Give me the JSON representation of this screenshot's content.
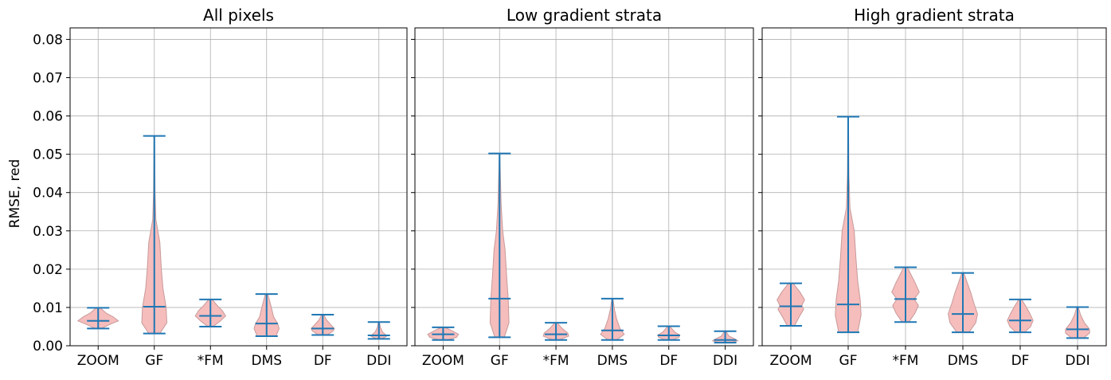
{
  "chart_data": {
    "type": "violin",
    "ylabel": "RMSE, red",
    "ylim": [
      0,
      0.083
    ],
    "yticks": [
      0.0,
      0.01,
      0.02,
      0.03,
      0.04,
      0.05,
      0.06,
      0.07,
      0.08
    ],
    "ytick_labels": [
      "0.00",
      "0.01",
      "0.02",
      "0.03",
      "0.04",
      "0.05",
      "0.06",
      "0.07",
      "0.08"
    ],
    "categories": [
      "ZOOM",
      "GF",
      "*FM",
      "DMS",
      "DF",
      "DDI"
    ],
    "grid": true,
    "violin_color": "#f4b9b8",
    "line_color": "#1f77b4",
    "panels": [
      {
        "title": "All pixels",
        "violins": [
          {
            "min": 0.0045,
            "median": 0.0065,
            "max": 0.0099,
            "profile": [
              [
                0.0045,
                0.15
              ],
              [
                0.0055,
                0.55
              ],
              [
                0.0065,
                1.0
              ],
              [
                0.0075,
                0.75
              ],
              [
                0.0085,
                0.4
              ],
              [
                0.0099,
                0.1
              ]
            ],
            "width": 0.9
          },
          {
            "min": 0.0032,
            "median": 0.0102,
            "max": 0.0548,
            "profile": [
              [
                0.0032,
                0.35
              ],
              [
                0.006,
                0.8
              ],
              [
                0.01,
                0.75
              ],
              [
                0.015,
                0.55
              ],
              [
                0.02,
                0.45
              ],
              [
                0.027,
                0.35
              ],
              [
                0.033,
                0.1
              ],
              [
                0.04,
                0.05
              ],
              [
                0.0548,
                0.02
              ]
            ],
            "width": 0.7
          },
          {
            "min": 0.005,
            "median": 0.0078,
            "max": 0.0121,
            "profile": [
              [
                0.005,
                0.15
              ],
              [
                0.0065,
                0.6
              ],
              [
                0.0078,
                0.9
              ],
              [
                0.0092,
                0.7
              ],
              [
                0.0105,
                0.4
              ],
              [
                0.0121,
                0.1
              ]
            ],
            "width": 0.75
          },
          {
            "min": 0.0025,
            "median": 0.0058,
            "max": 0.0135,
            "profile": [
              [
                0.0025,
                0.6
              ],
              [
                0.0045,
                0.8
              ],
              [
                0.0058,
                0.7
              ],
              [
                0.0075,
                0.45
              ],
              [
                0.01,
                0.3
              ],
              [
                0.0135,
                0.08
              ]
            ],
            "width": 0.7
          },
          {
            "min": 0.0028,
            "median": 0.0045,
            "max": 0.0081,
            "profile": [
              [
                0.0028,
                0.3
              ],
              [
                0.0038,
                0.7
              ],
              [
                0.0045,
                0.8
              ],
              [
                0.0055,
                0.55
              ],
              [
                0.0068,
                0.25
              ],
              [
                0.0081,
                0.08
              ]
            ],
            "width": 0.65
          },
          {
            "min": 0.0018,
            "median": 0.0027,
            "max": 0.0062,
            "profile": [
              [
                0.0018,
                0.2
              ],
              [
                0.0024,
                0.6
              ],
              [
                0.0029,
                0.55
              ],
              [
                0.0036,
                0.3
              ],
              [
                0.0048,
                0.12
              ],
              [
                0.0062,
                0.04
              ]
            ],
            "width": 0.55
          }
        ]
      },
      {
        "title": "Low gradient strata",
        "violins": [
          {
            "min": 0.0015,
            "median": 0.003,
            "max": 0.0048,
            "profile": [
              [
                0.0015,
                0.2
              ],
              [
                0.0022,
                0.7
              ],
              [
                0.003,
                0.8
              ],
              [
                0.0038,
                0.5
              ],
              [
                0.0048,
                0.1
              ]
            ],
            "width": 0.85
          },
          {
            "min": 0.0022,
            "median": 0.0123,
            "max": 0.0502,
            "profile": [
              [
                0.0022,
                0.3
              ],
              [
                0.006,
                0.6
              ],
              [
                0.012,
                0.55
              ],
              [
                0.018,
                0.45
              ],
              [
                0.025,
                0.35
              ],
              [
                0.03,
                0.2
              ],
              [
                0.037,
                0.1
              ],
              [
                0.0502,
                0.02
              ]
            ],
            "width": 0.7
          },
          {
            "min": 0.0015,
            "median": 0.003,
            "max": 0.006,
            "profile": [
              [
                0.0015,
                0.2
              ],
              [
                0.0025,
                0.8
              ],
              [
                0.0033,
                0.75
              ],
              [
                0.0045,
                0.4
              ],
              [
                0.006,
                0.08
              ]
            ],
            "width": 0.7
          },
          {
            "min": 0.0015,
            "median": 0.004,
            "max": 0.0123,
            "profile": [
              [
                0.0015,
                0.25
              ],
              [
                0.003,
                0.7
              ],
              [
                0.0045,
                0.45
              ],
              [
                0.007,
                0.25
              ],
              [
                0.0095,
                0.12
              ],
              [
                0.0123,
                0.03
              ]
            ],
            "width": 0.75
          },
          {
            "min": 0.0015,
            "median": 0.0027,
            "max": 0.0051,
            "profile": [
              [
                0.0015,
                0.2
              ],
              [
                0.0022,
                0.65
              ],
              [
                0.0028,
                0.7
              ],
              [
                0.0035,
                0.4
              ],
              [
                0.0051,
                0.06
              ]
            ],
            "width": 0.7
          },
          {
            "min": 0.0008,
            "median": 0.0015,
            "max": 0.0038,
            "profile": [
              [
                0.0008,
                0.3
              ],
              [
                0.0013,
                0.8
              ],
              [
                0.0018,
                0.6
              ],
              [
                0.0025,
                0.25
              ],
              [
                0.0038,
                0.04
              ]
            ],
            "width": 0.7
          }
        ]
      },
      {
        "title": "High gradient strata",
        "violins": [
          {
            "min": 0.0052,
            "median": 0.0103,
            "max": 0.0163,
            "profile": [
              [
                0.0052,
                0.2
              ],
              [
                0.0075,
                0.45
              ],
              [
                0.0095,
                0.7
              ],
              [
                0.0105,
                0.6
              ],
              [
                0.012,
                0.75
              ],
              [
                0.014,
                0.5
              ],
              [
                0.0163,
                0.12
              ]
            ],
            "width": 0.8
          },
          {
            "min": 0.0035,
            "median": 0.0108,
            "max": 0.0598,
            "profile": [
              [
                0.0035,
                0.55
              ],
              [
                0.008,
                0.75
              ],
              [
                0.012,
                0.7
              ],
              [
                0.017,
                0.55
              ],
              [
                0.023,
                0.45
              ],
              [
                0.03,
                0.35
              ],
              [
                0.036,
                0.1
              ],
              [
                0.045,
                0.04
              ],
              [
                0.0598,
                0.02
              ]
            ],
            "width": 0.75
          },
          {
            "min": 0.0062,
            "median": 0.0122,
            "max": 0.0205,
            "profile": [
              [
                0.0062,
                0.2
              ],
              [
                0.0085,
                0.55
              ],
              [
                0.0105,
                0.75
              ],
              [
                0.0122,
                0.5
              ],
              [
                0.014,
                0.8
              ],
              [
                0.0165,
                0.55
              ],
              [
                0.0205,
                0.1
              ]
            ],
            "width": 0.75
          },
          {
            "min": 0.0035,
            "median": 0.0083,
            "max": 0.019,
            "profile": [
              [
                0.0035,
                0.35
              ],
              [
                0.006,
                0.75
              ],
              [
                0.0083,
                0.85
              ],
              [
                0.011,
                0.65
              ],
              [
                0.014,
                0.45
              ],
              [
                0.0165,
                0.25
              ],
              [
                0.019,
                0.06
              ]
            ],
            "width": 0.75
          },
          {
            "min": 0.0035,
            "median": 0.0066,
            "max": 0.0121,
            "profile": [
              [
                0.0035,
                0.25
              ],
              [
                0.005,
                0.6
              ],
              [
                0.0066,
                0.75
              ],
              [
                0.0085,
                0.55
              ],
              [
                0.0105,
                0.3
              ],
              [
                0.0121,
                0.08
              ]
            ],
            "width": 0.75
          },
          {
            "min": 0.002,
            "median": 0.0043,
            "max": 0.0101,
            "profile": [
              [
                0.002,
                0.35
              ],
              [
                0.0033,
                0.7
              ],
              [
                0.0043,
                0.7
              ],
              [
                0.006,
                0.4
              ],
              [
                0.008,
                0.18
              ],
              [
                0.0101,
                0.04
              ]
            ],
            "width": 0.75
          }
        ]
      }
    ]
  }
}
